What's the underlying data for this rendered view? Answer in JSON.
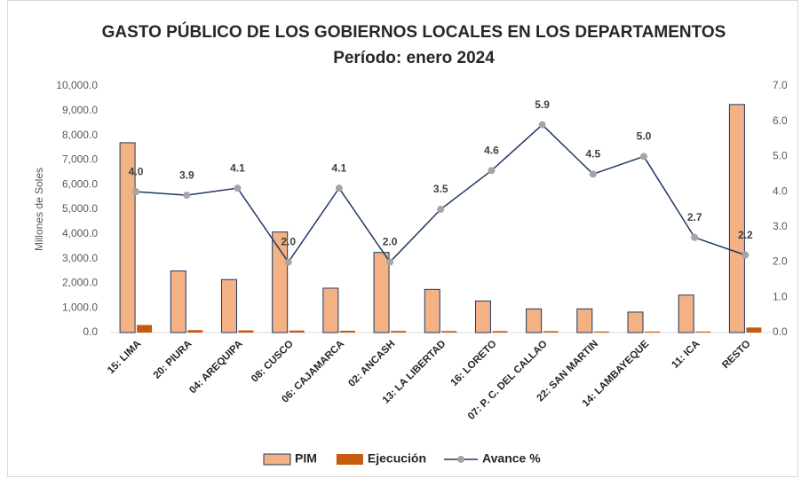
{
  "chart_data": {
    "type": "bar-line",
    "title": "GASTO PÚBLICO DE LOS GOBIERNOS LOCALES EN LOS DEPARTAMENTOS",
    "subtitle": "Período: enero 2024",
    "y_label": "Millones de Soles",
    "categories": [
      "15: LIMA",
      "20: PIURA",
      "04: AREQUIPA",
      "08: CUSCO",
      "06: CAJAMARCA",
      "02: ANCASH",
      "13: LA LIBERTAD",
      "16: LORETO",
      "07: P. C. DEL CALLAO",
      "22: SAN MARTIN",
      "14: LAMBAYEQUE",
      "11: ICA",
      "RESTO"
    ],
    "series": [
      {
        "name": "PIM",
        "type": "bar",
        "color": "#f4b183",
        "values": [
          7700,
          2500,
          2150,
          4080,
          1800,
          3250,
          1750,
          1280,
          960,
          960,
          830,
          1520,
          9250
        ]
      },
      {
        "name": "Ejecución",
        "type": "bar",
        "color": "#c55a11",
        "values": [
          308,
          98,
          88,
          82,
          74,
          65,
          61,
          59,
          57,
          43,
          41,
          41,
          204
        ]
      },
      {
        "name": "Avance %",
        "type": "line",
        "axis": "y2",
        "color": "#1f3864",
        "marker_color": "#a5a5a5",
        "values": [
          4.0,
          3.9,
          4.1,
          2.0,
          4.1,
          2.0,
          3.5,
          4.6,
          5.9,
          4.5,
          5.0,
          2.7,
          2.2
        ],
        "value_labels": [
          "4.0",
          "3.9",
          "4.1",
          "2.0",
          "4.1",
          "2.0",
          "3.5",
          "4.6",
          "5.9",
          "4.5",
          "5.0",
          "2.7",
          "2.2"
        ]
      }
    ],
    "ylim": [
      0,
      10000
    ],
    "yticks": [
      {
        "value": 0,
        "label": "0.0"
      },
      {
        "value": 1000,
        "label": "1,000.0"
      },
      {
        "value": 2000,
        "label": "2,000.0"
      },
      {
        "value": 3000,
        "label": "3,000.0"
      },
      {
        "value": 4000,
        "label": "4,000.0"
      },
      {
        "value": 5000,
        "label": "5,000.0"
      },
      {
        "value": 6000,
        "label": "6,000.0"
      },
      {
        "value": 7000,
        "label": "7,000.0"
      },
      {
        "value": 8000,
        "label": "8,000.0"
      },
      {
        "value": 9000,
        "label": "9,000.0"
      },
      {
        "value": 10000,
        "label": "10,000.0"
      }
    ],
    "y2lim": [
      0,
      7
    ],
    "y2ticks": [
      {
        "value": 0,
        "label": "0.0"
      },
      {
        "value": 1,
        "label": "1.0"
      },
      {
        "value": 2,
        "label": "2.0"
      },
      {
        "value": 3,
        "label": "3.0"
      },
      {
        "value": 4,
        "label": "4.0"
      },
      {
        "value": 5,
        "label": "5.0"
      },
      {
        "value": 6,
        "label": "6.0"
      },
      {
        "value": 7,
        "label": "7.0"
      }
    ],
    "grid": false,
    "legend": "bottom"
  }
}
